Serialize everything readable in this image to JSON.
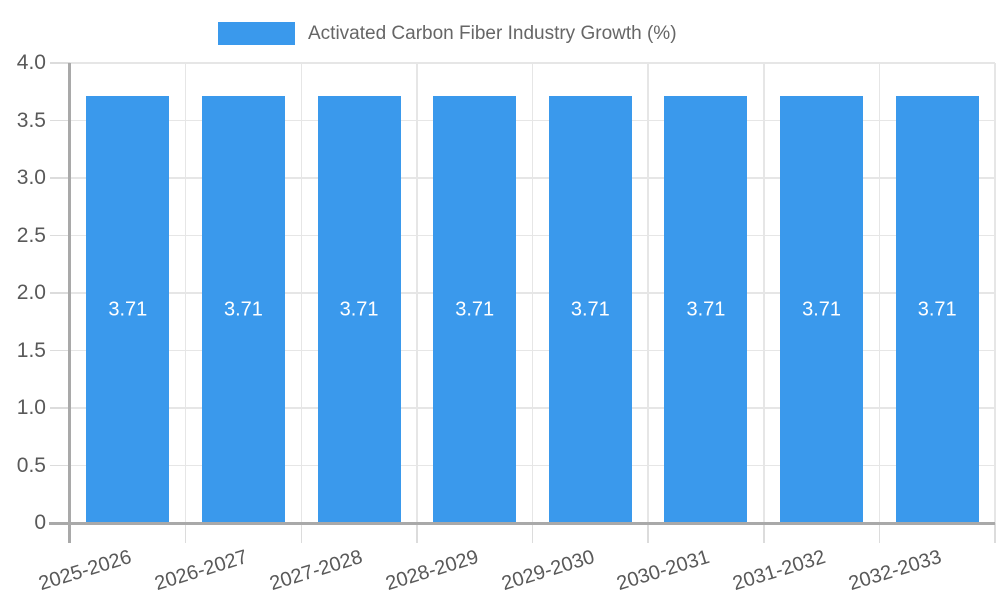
{
  "chart_data": {
    "type": "bar",
    "title": "",
    "legend_label": "Activated Carbon Fiber Industry Growth (%)",
    "legend_position": "top",
    "categories": [
      "2025-2026",
      "2026-2027",
      "2027-2028",
      "2028-2029",
      "2029-2030",
      "2030-2031",
      "2031-2032",
      "2032-2033"
    ],
    "values": [
      3.71,
      3.71,
      3.71,
      3.71,
      3.71,
      3.71,
      3.71,
      3.71
    ],
    "value_labels": [
      "3.71",
      "3.71",
      "3.71",
      "3.71",
      "3.71",
      "3.71",
      "3.71",
      "3.71"
    ],
    "y_ticks": [
      "4.0",
      "3.5",
      "3.0",
      "2.5",
      "2.0",
      "1.5",
      "1.0",
      "0.5",
      "0"
    ],
    "ylim": [
      0,
      4
    ],
    "xlabel": "",
    "ylabel": "",
    "grid": true
  },
  "colors": {
    "bar": "#3A99EC",
    "bar_label": "#ffffff",
    "grid": "#e6e6e6",
    "tick_mark": "#dcdcdc",
    "axis_border": "#a9a9a9",
    "axis_label": "#595959",
    "legend_text": "#666666"
  }
}
